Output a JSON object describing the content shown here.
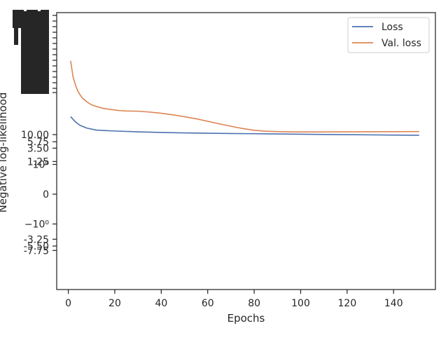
{
  "chart_data": {
    "type": "line",
    "title": "",
    "xlabel": "Epochs",
    "ylabel": "Negative log-likelihood",
    "xlim": [
      -5,
      158
    ],
    "x_ticks": [
      "0",
      "20",
      "40",
      "60",
      "80",
      "100",
      "120",
      "140"
    ],
    "y_scale": "symlog",
    "y_ticks": [
      {
        "label": "10.00",
        "value": 10.0
      },
      {
        "label": "5.75",
        "value": 5.75
      },
      {
        "label": "3.50",
        "value": 3.5
      },
      {
        "label": "1.25",
        "value": 1.25
      },
      {
        "label": "10⁰",
        "value": 1.0
      },
      {
        "label": "0",
        "value": 0.0
      },
      {
        "label": "−10⁰",
        "value": -1.0
      },
      {
        "label": "-3.25",
        "value": -3.25
      },
      {
        "label": "-5.50",
        "value": -5.5
      },
      {
        "label": "-7.75",
        "value": -7.75
      }
    ],
    "legend_position": "top-right",
    "grid": false,
    "series": [
      {
        "name": "Loss",
        "color": "#4c72b0",
        "x": [
          1,
          3,
          5,
          8,
          12,
          16,
          20,
          30,
          40,
          50,
          60,
          70,
          80,
          90,
          100,
          110,
          120,
          130,
          140,
          151
        ],
        "y": [
          40,
          27,
          20.5,
          16.5,
          14.2,
          13.6,
          13.2,
          12.4,
          11.8,
          11.4,
          11.1,
          10.9,
          10.7,
          10.5,
          10.3,
          10.1,
          9.95,
          9.8,
          9.65,
          9.5
        ]
      },
      {
        "name": "Val. loss",
        "color": "#dd8452",
        "x": [
          1,
          2,
          3,
          4,
          5,
          6,
          8,
          10,
          12,
          15,
          18,
          22,
          25,
          30,
          35,
          40,
          45,
          50,
          55,
          60,
          65,
          70,
          75,
          80,
          85,
          90,
          95,
          100,
          110,
          120,
          130,
          140,
          151
        ],
        "y": [
          3000,
          900,
          480,
          300,
          220,
          170,
          125,
          100,
          88,
          76,
          70,
          64,
          62,
          61,
          57,
          52,
          46,
          40,
          34,
          28,
          23,
          19,
          16,
          14,
          13,
          12.6,
          12.4,
          12.3,
          12.3,
          12.35,
          12.45,
          12.55,
          12.6
        ]
      }
    ]
  }
}
